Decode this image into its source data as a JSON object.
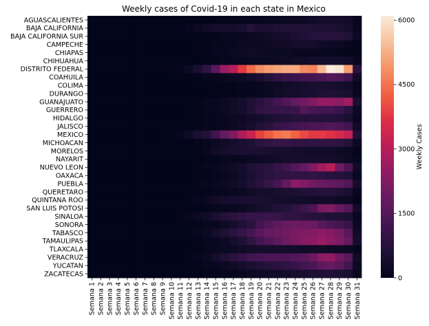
{
  "chart_data": {
    "type": "heatmap",
    "title": "Weekly cases of Covid-19 in each state in Mexico",
    "xlabel": "",
    "ylabel": "",
    "colorbar_label": "Weekly Cases",
    "colorbar_ticks": [
      0,
      1500,
      3000,
      4500,
      6000
    ],
    "colorbar_range": [
      0,
      6100
    ],
    "colormap": "rocket",
    "x": [
      "Semana 1",
      "Semana 2",
      "Semana 3",
      "Semana 4",
      "Semana 5",
      "Semana 6",
      "Semana 7",
      "Semana 8",
      "Semana 9",
      "Semana 10",
      "Semana 11",
      "Semana 12",
      "Semana 13",
      "Semana 14",
      "Semana 15",
      "Semana 16",
      "Semana 17",
      "Semana 18",
      "Semana 19",
      "Semana 20",
      "Semana 21",
      "Semana 22",
      "Semana 23",
      "Semana 24",
      "Semana 25",
      "Semana 26",
      "Semana 27",
      "Semana 28",
      "Semana 29",
      "Semana 30",
      "Semana 31"
    ],
    "y": [
      "AGUASCALIENTES",
      "BAJA CALIFORNIA",
      "BAJA CALIFORNIA SUR",
      "CAMPECHE",
      "CHIAPAS",
      "CHIHUAHUA",
      "DISTRITO FEDERAL",
      "COAHUILA",
      "COLIMA",
      "DURANGO",
      "GUANAJUATO",
      "GUERRERO",
      "HIDALGO",
      "JALISCO",
      "MEXICO",
      "MICHOACAN",
      "MORELOS",
      "NAYARIT",
      "NUEVO LEON",
      "OAXACA",
      "PUEBLA",
      "QUERETARO",
      "QUINTANA ROO",
      "SAN LUIS POTOSI",
      "SINALOA",
      "SONORA",
      "TABASCO",
      "TAMAULIPAS",
      "TLAXCALA",
      "VERACRUZ",
      "YUCATAN",
      "ZACATECAS"
    ],
    "values": [
      [
        0,
        0,
        0,
        0,
        0,
        0,
        0,
        0,
        0,
        0,
        0,
        0,
        0,
        10,
        20,
        40,
        60,
        80,
        100,
        120,
        150,
        180,
        200,
        220,
        250,
        300,
        350,
        400,
        380,
        300,
        100
      ],
      [
        0,
        0,
        0,
        0,
        0,
        0,
        0,
        0,
        0,
        0,
        0,
        100,
        200,
        300,
        400,
        400,
        400,
        450,
        700,
        500,
        500,
        600,
        600,
        650,
        600,
        600,
        550,
        550,
        500,
        400,
        100
      ],
      [
        0,
        0,
        0,
        0,
        0,
        0,
        0,
        0,
        0,
        0,
        0,
        0,
        10,
        20,
        50,
        80,
        100,
        150,
        200,
        250,
        300,
        350,
        400,
        500,
        600,
        700,
        750,
        800,
        750,
        600,
        200
      ],
      [
        0,
        0,
        0,
        0,
        0,
        0,
        0,
        0,
        0,
        0,
        0,
        0,
        20,
        40,
        80,
        100,
        150,
        200,
        200,
        200,
        250,
        300,
        300,
        350,
        400,
        350,
        300,
        250,
        200,
        150,
        50
      ],
      [
        0,
        0,
        0,
        0,
        0,
        0,
        0,
        0,
        0,
        0,
        0,
        0,
        20,
        50,
        100,
        150,
        200,
        250,
        300,
        250,
        200,
        200,
        200,
        150,
        150,
        100,
        100,
        100,
        80,
        50,
        20
      ],
      [
        0,
        0,
        0,
        0,
        0,
        0,
        0,
        0,
        0,
        0,
        0,
        0,
        10,
        30,
        50,
        80,
        100,
        150,
        200,
        200,
        200,
        250,
        250,
        300,
        300,
        350,
        400,
        400,
        400,
        350,
        100
      ],
      [
        0,
        0,
        0,
        0,
        0,
        0,
        0,
        0,
        10,
        50,
        100,
        250,
        500,
        900,
        1600,
        2600,
        3000,
        3800,
        4400,
        4800,
        5000,
        5100,
        5200,
        5200,
        4800,
        4700,
        5400,
        6100,
        6000,
        5000,
        800
      ],
      [
        0,
        0,
        0,
        0,
        0,
        0,
        0,
        0,
        0,
        0,
        0,
        20,
        50,
        80,
        100,
        150,
        200,
        250,
        350,
        500,
        700,
        900,
        1000,
        1100,
        1200,
        1300,
        1400,
        1500,
        1400,
        1200,
        300
      ],
      [
        0,
        0,
        0,
        0,
        0,
        0,
        0,
        0,
        0,
        0,
        0,
        0,
        0,
        10,
        20,
        30,
        50,
        80,
        100,
        150,
        200,
        250,
        300,
        350,
        400,
        450,
        500,
        450,
        400,
        300,
        100
      ],
      [
        0,
        0,
        0,
        0,
        0,
        0,
        0,
        0,
        0,
        0,
        0,
        0,
        0,
        10,
        20,
        30,
        50,
        80,
        100,
        150,
        200,
        300,
        350,
        400,
        450,
        500,
        550,
        600,
        550,
        450,
        150
      ],
      [
        0,
        0,
        0,
        0,
        0,
        0,
        0,
        0,
        0,
        0,
        0,
        20,
        50,
        80,
        150,
        200,
        300,
        400,
        600,
        800,
        1000,
        1200,
        1500,
        1800,
        2000,
        2200,
        2500,
        2500,
        2400,
        2700,
        500
      ],
      [
        0,
        0,
        0,
        0,
        0,
        0,
        0,
        0,
        0,
        0,
        0,
        20,
        50,
        100,
        150,
        200,
        300,
        400,
        600,
        900,
        1000,
        1000,
        1000,
        1100,
        1500,
        1300,
        1200,
        1200,
        1100,
        800,
        200
      ],
      [
        0,
        0,
        0,
        0,
        0,
        0,
        0,
        0,
        0,
        0,
        0,
        20,
        50,
        80,
        100,
        150,
        200,
        250,
        300,
        400,
        500,
        600,
        650,
        700,
        700,
        700,
        700,
        700,
        650,
        500,
        150
      ],
      [
        0,
        0,
        0,
        0,
        0,
        0,
        0,
        0,
        0,
        0,
        0,
        20,
        40,
        80,
        100,
        150,
        200,
        300,
        400,
        600,
        800,
        1000,
        1100,
        1200,
        1300,
        1400,
        1400,
        1500,
        1400,
        1200,
        300
      ],
      [
        0,
        0,
        0,
        0,
        0,
        0,
        0,
        0,
        10,
        50,
        100,
        300,
        500,
        700,
        1200,
        1800,
        2200,
        2900,
        3300,
        3900,
        4200,
        4500,
        4600,
        4300,
        4000,
        3800,
        3800,
        3700,
        3500,
        3200,
        600
      ],
      [
        0,
        0,
        0,
        0,
        0,
        0,
        0,
        0,
        0,
        0,
        0,
        20,
        50,
        100,
        200,
        300,
        400,
        500,
        600,
        800,
        900,
        1000,
        1000,
        900,
        900,
        900,
        900,
        900,
        850,
        700,
        200
      ],
      [
        0,
        0,
        0,
        0,
        0,
        0,
        0,
        0,
        0,
        0,
        0,
        20,
        50,
        150,
        300,
        400,
        450,
        500,
        500,
        500,
        450,
        400,
        400,
        350,
        350,
        300,
        300,
        300,
        250,
        200,
        50
      ],
      [
        0,
        0,
        0,
        0,
        0,
        0,
        0,
        0,
        0,
        0,
        0,
        0,
        10,
        30,
        50,
        80,
        100,
        150,
        200,
        250,
        300,
        350,
        400,
        400,
        400,
        400,
        400,
        350,
        300,
        250,
        80
      ],
      [
        0,
        0,
        0,
        0,
        0,
        0,
        0,
        0,
        0,
        0,
        0,
        20,
        50,
        80,
        150,
        200,
        300,
        400,
        600,
        700,
        800,
        1000,
        1200,
        1500,
        1800,
        2200,
        2700,
        3000,
        2000,
        1400,
        300
      ],
      [
        0,
        0,
        0,
        0,
        0,
        0,
        0,
        0,
        0,
        0,
        0,
        10,
        30,
        50,
        100,
        150,
        250,
        350,
        500,
        700,
        800,
        900,
        900,
        900,
        900,
        900,
        850,
        800,
        700,
        600,
        150
      ],
      [
        0,
        0,
        0,
        0,
        0,
        0,
        0,
        0,
        0,
        0,
        0,
        20,
        50,
        100,
        150,
        200,
        300,
        400,
        600,
        800,
        1000,
        1300,
        1800,
        2400,
        2200,
        2000,
        1900,
        1800,
        1700,
        1500,
        400
      ],
      [
        0,
        0,
        0,
        0,
        0,
        0,
        0,
        0,
        0,
        0,
        0,
        10,
        30,
        50,
        80,
        100,
        150,
        200,
        300,
        350,
        400,
        450,
        500,
        550,
        600,
        650,
        700,
        700,
        650,
        500,
        150
      ],
      [
        0,
        0,
        0,
        0,
        0,
        0,
        0,
        0,
        0,
        0,
        0,
        50,
        100,
        200,
        300,
        400,
        450,
        500,
        500,
        500,
        450,
        400,
        400,
        350,
        350,
        300,
        300,
        300,
        250,
        200,
        50
      ],
      [
        0,
        0,
        0,
        0,
        0,
        0,
        0,
        0,
        0,
        0,
        0,
        10,
        30,
        50,
        80,
        100,
        150,
        200,
        300,
        400,
        500,
        600,
        700,
        900,
        1100,
        1400,
        2100,
        2200,
        1800,
        1500,
        300
      ],
      [
        0,
        0,
        0,
        0,
        0,
        0,
        0,
        0,
        0,
        0,
        50,
        100,
        200,
        300,
        500,
        700,
        800,
        900,
        1000,
        1000,
        1100,
        1000,
        900,
        900,
        800,
        700,
        700,
        600,
        600,
        500,
        100
      ],
      [
        0,
        0,
        0,
        0,
        0,
        0,
        0,
        0,
        0,
        0,
        0,
        20,
        50,
        80,
        150,
        250,
        400,
        600,
        800,
        1200,
        1500,
        1700,
        1800,
        1900,
        1900,
        1900,
        1600,
        1400,
        1200,
        1000,
        200
      ],
      [
        0,
        0,
        0,
        0,
        0,
        0,
        0,
        0,
        0,
        0,
        10,
        50,
        100,
        200,
        400,
        600,
        800,
        1000,
        1300,
        1600,
        1800,
        1900,
        2000,
        2100,
        2200,
        2200,
        2400,
        2300,
        2100,
        1600,
        300
      ],
      [
        0,
        0,
        0,
        0,
        0,
        0,
        0,
        0,
        0,
        0,
        0,
        20,
        50,
        100,
        150,
        250,
        400,
        600,
        900,
        1200,
        1500,
        1700,
        1900,
        2100,
        2300,
        2400,
        2600,
        2400,
        2200,
        1800,
        400
      ],
      [
        0,
        0,
        0,
        0,
        0,
        0,
        0,
        0,
        0,
        0,
        0,
        10,
        30,
        80,
        150,
        200,
        250,
        300,
        350,
        400,
        400,
        400,
        350,
        350,
        300,
        300,
        300,
        250,
        250,
        200,
        50
      ],
      [
        0,
        0,
        0,
        0,
        0,
        0,
        0,
        0,
        0,
        0,
        0,
        50,
        100,
        200,
        400,
        600,
        800,
        1000,
        1200,
        1300,
        1400,
        1400,
        1400,
        1500,
        1600,
        1900,
        2400,
        2500,
        2000,
        1600,
        300
      ],
      [
        0,
        0,
        0,
        0,
        0,
        0,
        0,
        0,
        0,
        0,
        0,
        20,
        50,
        80,
        150,
        200,
        300,
        400,
        500,
        600,
        700,
        800,
        900,
        1000,
        1200,
        1400,
        1700,
        1800,
        1600,
        1200,
        200
      ],
      [
        0,
        0,
        0,
        0,
        0,
        0,
        0,
        0,
        0,
        0,
        0,
        0,
        10,
        30,
        50,
        80,
        100,
        150,
        200,
        250,
        300,
        350,
        400,
        450,
        500,
        550,
        600,
        600,
        550,
        450,
        100
      ]
    ]
  }
}
